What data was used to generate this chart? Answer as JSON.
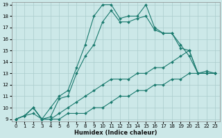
{
  "xlabel": "Humidex (Indice chaleur)",
  "bg_color": "#cce8e8",
  "grid_color": "#aacccc",
  "line_color": "#1a7a6e",
  "x_values": [
    0,
    1,
    2,
    3,
    4,
    5,
    6,
    7,
    8,
    9,
    10,
    11,
    12,
    13,
    14,
    15,
    16,
    17,
    18,
    19,
    20,
    21,
    22,
    23
  ],
  "line_max": [
    9,
    9.3,
    10,
    9,
    10,
    11,
    11.5,
    13.5,
    15.5,
    18,
    19,
    19,
    17.8,
    18,
    18,
    19,
    17,
    16.5,
    16.5,
    15.2,
    15,
    13,
    13,
    13
  ],
  "line_mid": [
    9,
    9.3,
    10,
    9,
    9.2,
    10.8,
    11.0,
    13.0,
    14.5,
    15.5,
    17.5,
    18.5,
    17.5,
    17.5,
    17.8,
    18.0,
    16.8,
    16.5,
    16.5,
    15.5,
    14.5,
    13.0,
    13.2,
    13.0
  ],
  "line_avg": [
    9,
    9.3,
    10,
    9,
    9.0,
    9.5,
    10.0,
    10.5,
    11.0,
    11.5,
    12.0,
    12.5,
    12.5,
    12.5,
    13.0,
    13.0,
    13.5,
    13.5,
    14.0,
    14.5,
    15.0,
    13.0,
    13.0,
    13.0
  ],
  "line_min": [
    9,
    9.3,
    9.5,
    9,
    9.0,
    9.0,
    9.5,
    9.5,
    9.5,
    10.0,
    10.0,
    10.5,
    11.0,
    11.0,
    11.5,
    11.5,
    12.0,
    12.0,
    12.5,
    12.5,
    13.0,
    13.0,
    13.0,
    13.0
  ],
  "ylim": [
    9,
    19
  ],
  "xlim": [
    0,
    23
  ],
  "yticks": [
    9,
    10,
    11,
    12,
    13,
    14,
    15,
    16,
    17,
    18,
    19
  ],
  "xticks": [
    0,
    1,
    2,
    3,
    4,
    5,
    6,
    7,
    8,
    9,
    10,
    11,
    12,
    13,
    14,
    15,
    16,
    17,
    18,
    19,
    20,
    21,
    22,
    23
  ],
  "xlabel_fontsize": 6.0,
  "tick_fontsize": 5.0
}
